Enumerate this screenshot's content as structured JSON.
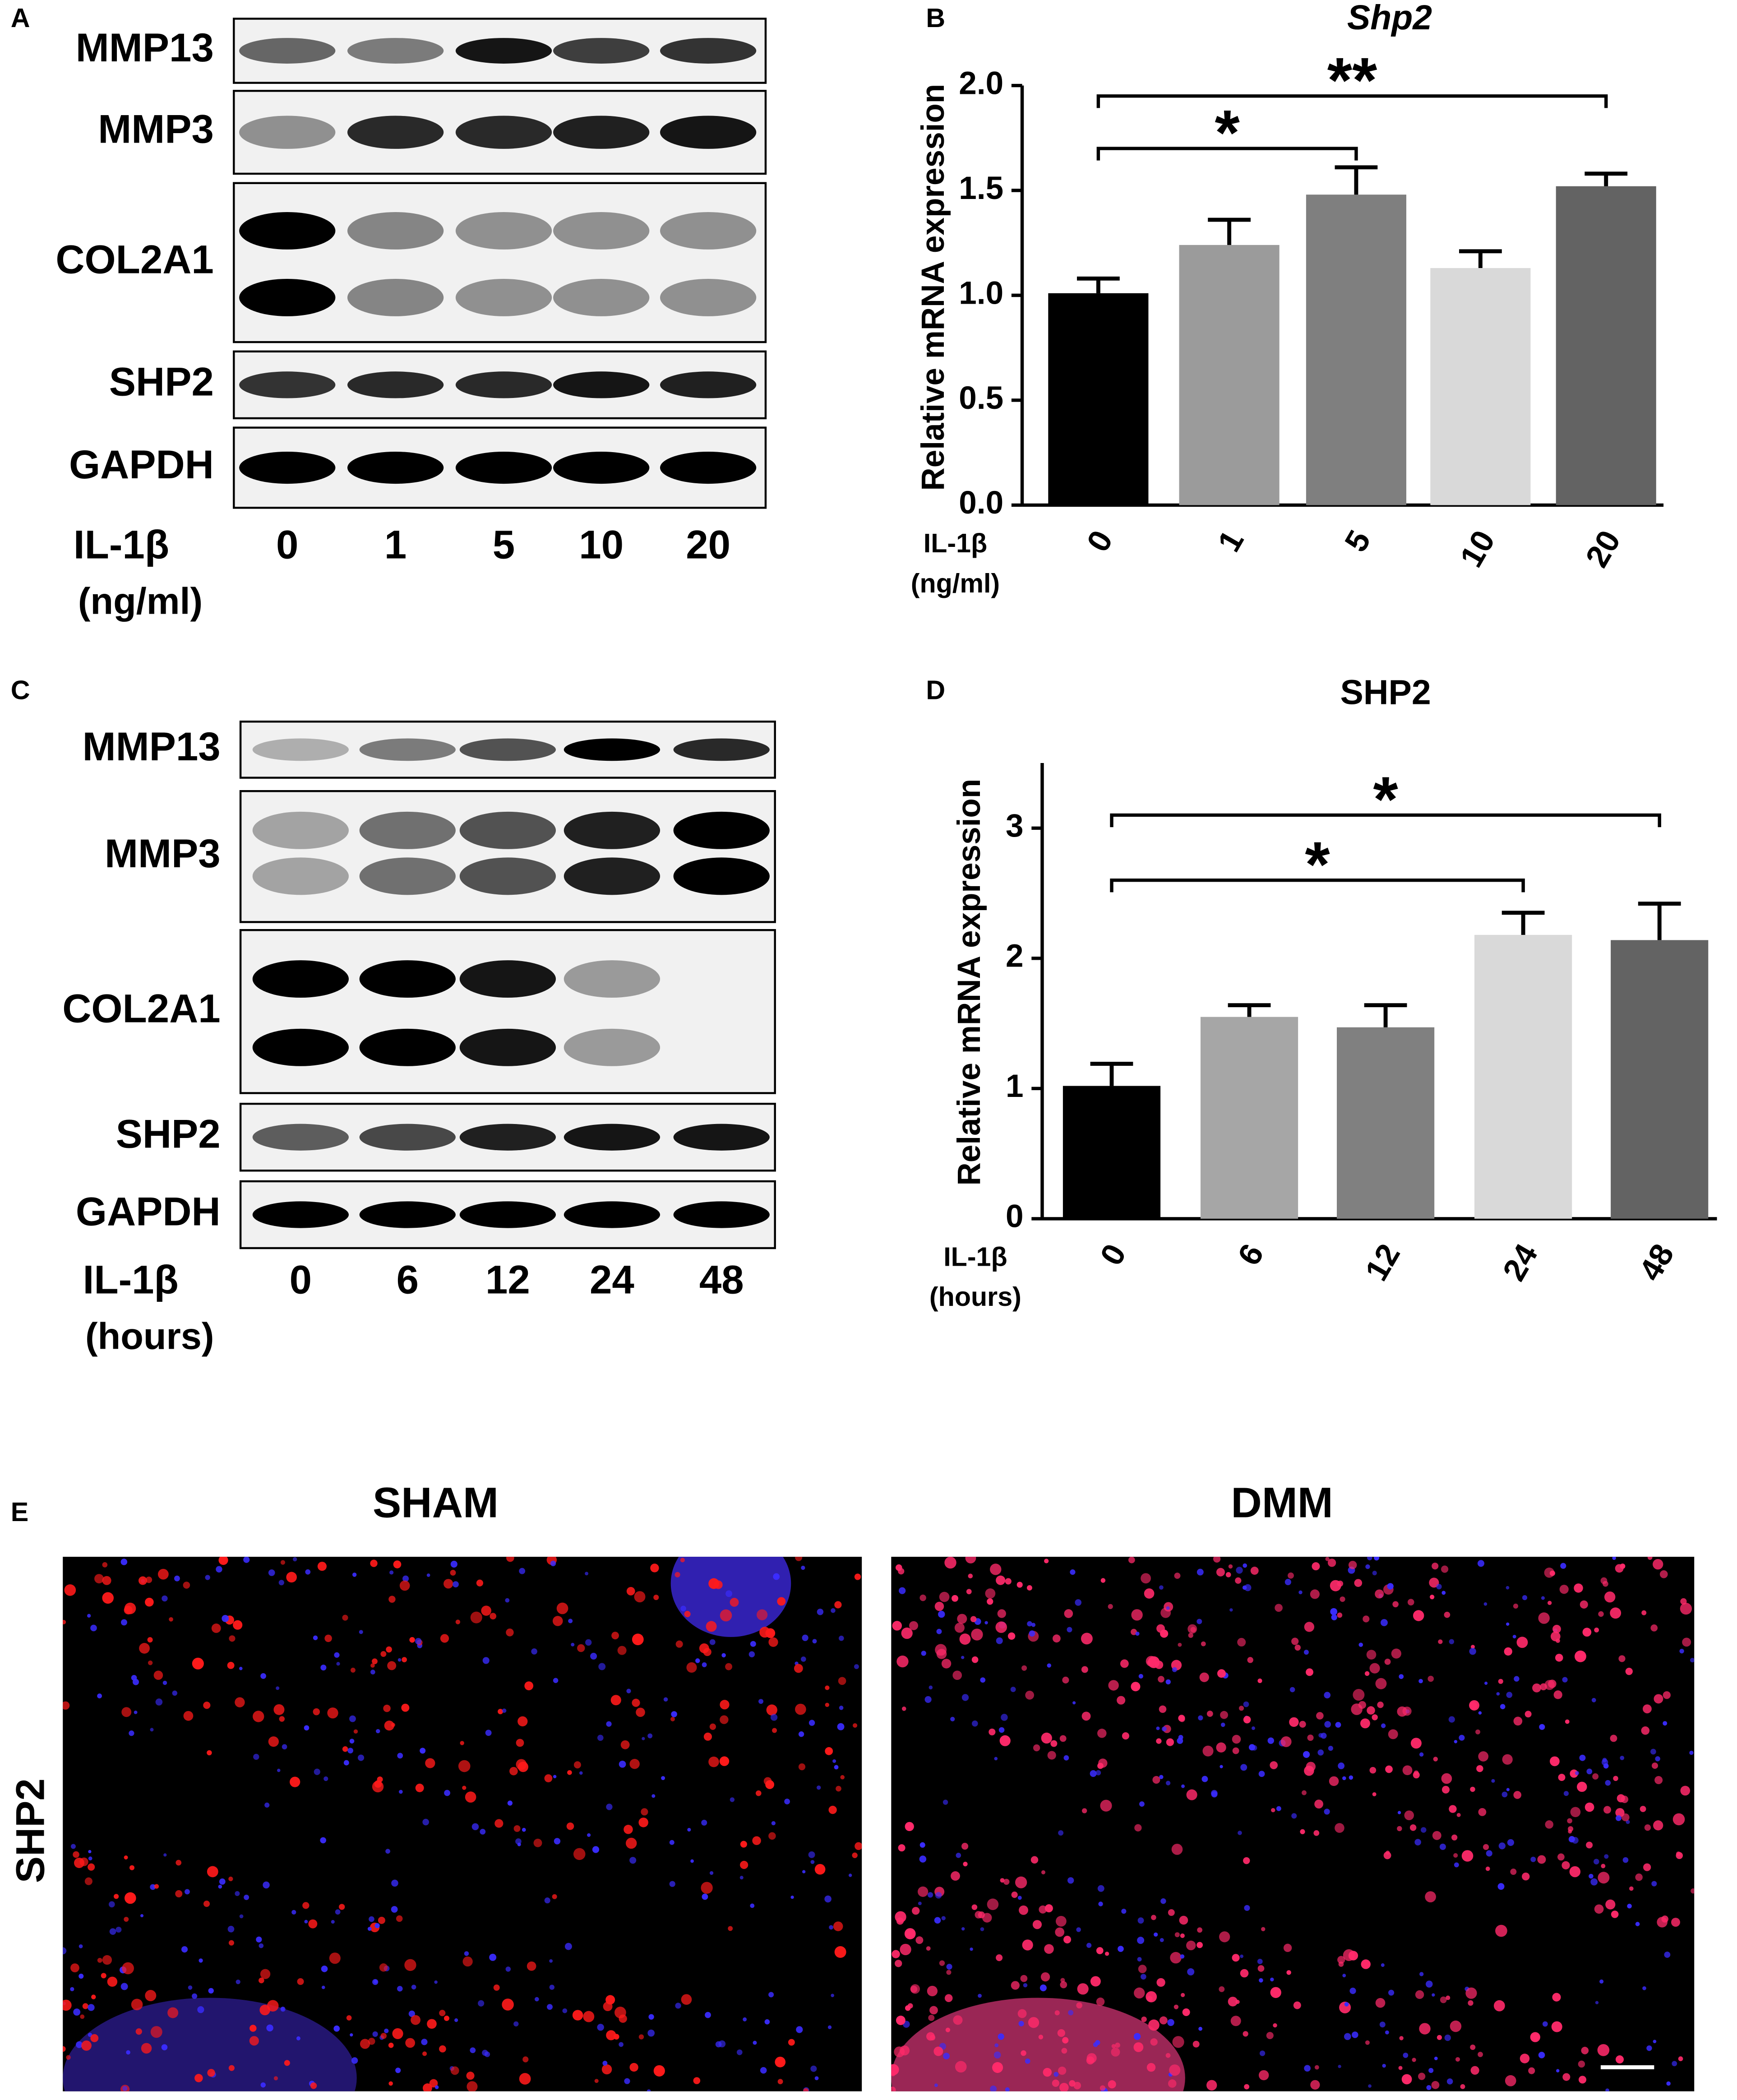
{
  "blots": [
    {
      "panel_label": "A",
      "rows": [
        "MMP13",
        "MMP3",
        "COL2A1",
        "SHP2",
        "GAPDH"
      ],
      "lanes": [
        "0",
        "1",
        "5",
        "10",
        "20"
      ],
      "treatment": "IL-1β",
      "unit": "(ng/ml)"
    },
    {
      "panel_label": "C",
      "rows": [
        "MMP13",
        "MMP3",
        "COL2A1",
        "SHP2",
        "GAPDH"
      ],
      "lanes": [
        "0",
        "6",
        "12",
        "24",
        "48"
      ],
      "treatment": "IL-1β",
      "unit": "(hours)"
    }
  ],
  "chart_data": [
    {
      "type": "bar",
      "panel_label": "B",
      "title": "Shp2",
      "y_label": "Relative mRNA expression",
      "x_label": "IL-1β",
      "x_unit": "(ng/ml)",
      "categories": [
        "0",
        "1",
        "5",
        "10",
        "20"
      ],
      "values": [
        1.01,
        1.24,
        1.48,
        1.13,
        1.52
      ],
      "errors": [
        0.07,
        0.12,
        0.13,
        0.08,
        0.06
      ],
      "colors": [
        "#000000",
        "#9b9b9b",
        "#7f7f7f",
        "#d9d9d9",
        "#636363"
      ],
      "ylim": [
        0,
        2.0
      ],
      "yticks": [
        {
          "value": 0,
          "label": "0.0"
        },
        {
          "value": 0.5,
          "label": "0.5"
        },
        {
          "value": 1,
          "label": "1.0"
        },
        {
          "value": 1.5,
          "label": "1.5"
        },
        {
          "value": 2,
          "label": "2.0"
        }
      ],
      "significance": [
        {
          "from": "0",
          "to": "5",
          "label": "*",
          "y": 1.7
        },
        {
          "from": "0",
          "to": "20",
          "label": "**",
          "y": 1.95
        }
      ]
    },
    {
      "type": "bar",
      "panel_label": "D",
      "title": "SHP2",
      "y_label": "Relative mRNA expression",
      "x_label": "IL-1β",
      "x_unit": "(hours)",
      "categories": [
        "0",
        "6",
        "12",
        "24",
        "48"
      ],
      "values": [
        1.02,
        1.55,
        1.47,
        2.18,
        2.14
      ],
      "errors": [
        0.17,
        0.09,
        0.17,
        0.17,
        0.28
      ],
      "colors": [
        "#000000",
        "#a6a6a6",
        "#808080",
        "#d9d9d9",
        "#636363"
      ],
      "ylim": [
        0,
        3.5
      ],
      "yticks": [
        0,
        1,
        2,
        3
      ],
      "significance": [
        {
          "from": "0",
          "to": "24",
          "label": "*",
          "y": 2.6
        },
        {
          "from": "0",
          "to": "48",
          "label": "*",
          "y": 3.1
        }
      ]
    }
  ],
  "microscopy": {
    "panel_label": "E",
    "columns": [
      "SHAM",
      "DMM"
    ],
    "row_label": "SHP2"
  }
}
